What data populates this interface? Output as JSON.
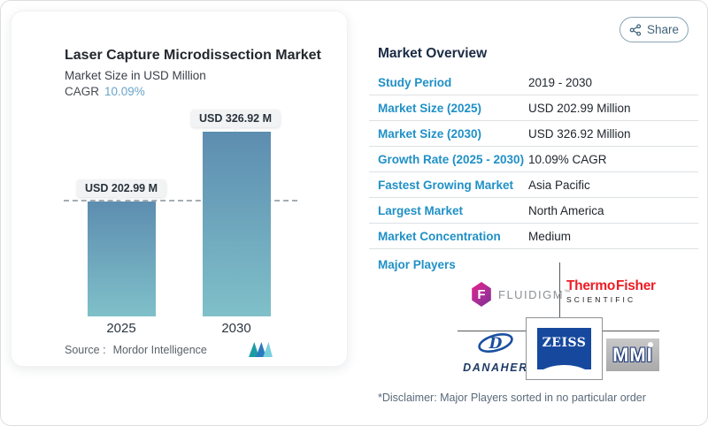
{
  "chart_data": {
    "type": "bar",
    "title": "Laser Capture Microdissection Market",
    "subtitle": "Market Size in USD Million",
    "cagr_label": "CAGR",
    "cagr_value": "10.09%",
    "categories": [
      "2025",
      "2030"
    ],
    "values": [
      202.99,
      326.92
    ],
    "value_labels": [
      "USD 202.99 M",
      "USD 326.92 M"
    ],
    "baseline_value": 202.99,
    "ylim": [
      0,
      360
    ],
    "grid": false,
    "legend": "none",
    "source_label": "Source :",
    "source_name": "Mordor Intelligence"
  },
  "overview": {
    "share_label": "Share",
    "title": "Market Overview",
    "rows": [
      {
        "label": "Study Period",
        "value": "2019 - 2030"
      },
      {
        "label": "Market Size (2025)",
        "value": "USD 202.99 Million"
      },
      {
        "label": "Market Size (2030)",
        "value": "USD 326.92 Million"
      },
      {
        "label": "Growth Rate (2025 - 2030)",
        "value": "10.09% CAGR"
      },
      {
        "label": "Fastest Growing Market",
        "value": "Asia Pacific"
      },
      {
        "label": "Largest Market",
        "value": "North America"
      },
      {
        "label": "Market Concentration",
        "value": "Medium"
      }
    ],
    "major_players_label": "Major Players",
    "players": {
      "fluidigm": {
        "icon_letter": "F",
        "name": "FLUIDIGM",
        "tm": "™"
      },
      "thermo": {
        "line1": "Thermo Fisher",
        "line2": "SCIENTIFIC"
      },
      "danaher": {
        "icon_letter": "D",
        "name": "DANAHER"
      },
      "zeiss": {
        "name": "ZEISS"
      },
      "mmi": {
        "name": "MMI"
      }
    },
    "disclaimer": "*Disclaimer: Major Players sorted in no particular order"
  },
  "colors": {
    "label_blue": "#2090c6",
    "cagr_blue": "#68a4c9",
    "bar_gradient_top": "#5d8db0",
    "bar_gradient_bottom": "#7fc0c9",
    "thermo_red": "#ed1c24",
    "zeiss_blue": "#16499e",
    "danaher_blue": "#1b4fa0",
    "fluidigm_magenta": "#c0237f",
    "mmi_silver": "#b3b3b3"
  }
}
